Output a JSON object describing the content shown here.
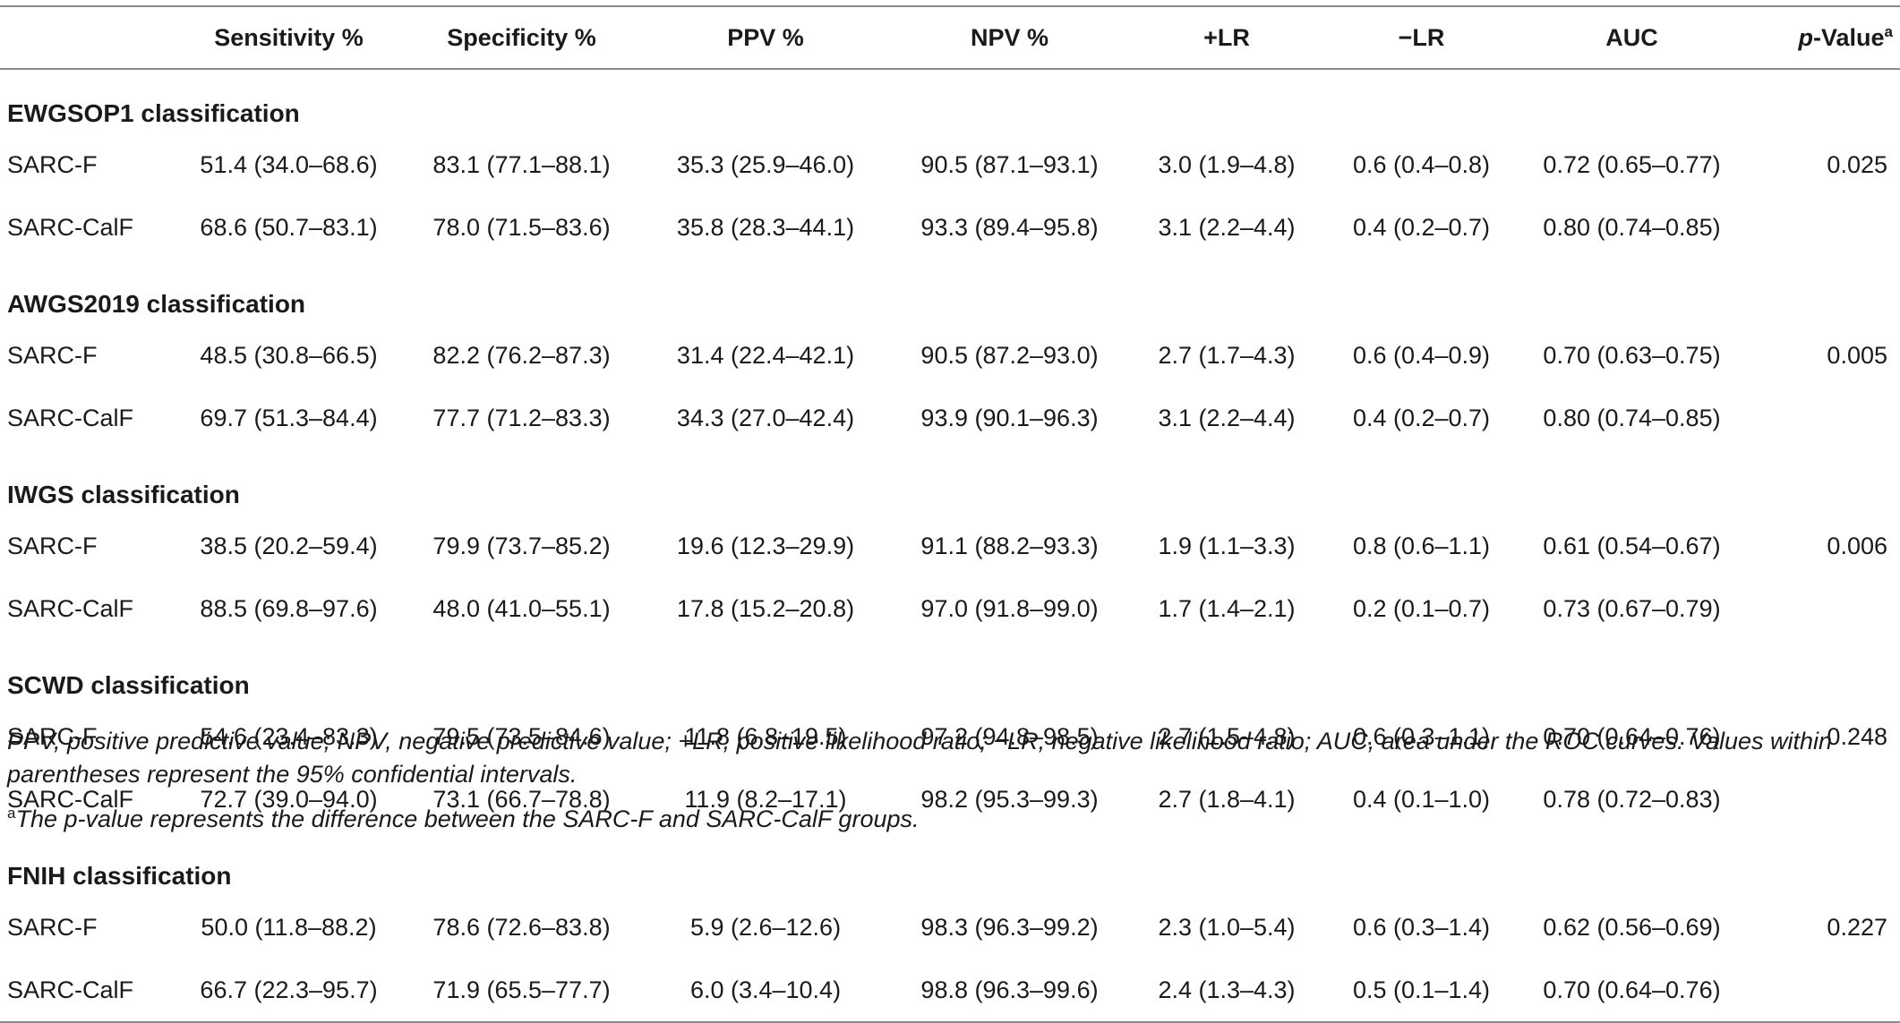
{
  "table": {
    "headers": {
      "col0": "",
      "sensitivity": "Sensitivity %",
      "specificity": "Specificity %",
      "ppv": "PPV %",
      "npv": "NPV %",
      "plr": "+LR",
      "nlr": "−LR",
      "auc": "AUC",
      "pvalue_italic": "p",
      "pvalue_rest": "-Value",
      "pvalue_sup": "a"
    },
    "sections": [
      {
        "title": "EWGSOP1 classification",
        "rows": [
          {
            "label": "SARC-F",
            "sens": "51.4 (34.0–68.6)",
            "spec": "83.1 (77.1–88.1)",
            "ppv": "35.3 (25.9–46.0)",
            "npv": "90.5 (87.1–93.1)",
            "plr": "3.0 (1.9–4.8)",
            "nlr": "0.6 (0.4–0.8)",
            "auc": "0.72 (0.65–0.77)",
            "p": "0.025"
          },
          {
            "label": "SARC-CalF",
            "sens": "68.6 (50.7–83.1)",
            "spec": "78.0 (71.5–83.6)",
            "ppv": "35.8 (28.3–44.1)",
            "npv": "93.3 (89.4–95.8)",
            "plr": "3.1 (2.2–4.4)",
            "nlr": "0.4 (0.2–0.7)",
            "auc": "0.80 (0.74–0.85)",
            "p": ""
          }
        ]
      },
      {
        "title": "AWGS2019 classification",
        "rows": [
          {
            "label": "SARC-F",
            "sens": "48.5 (30.8–66.5)",
            "spec": "82.2 (76.2–87.3)",
            "ppv": "31.4 (22.4–42.1)",
            "npv": "90.5 (87.2–93.0)",
            "plr": "2.7 (1.7–4.3)",
            "nlr": "0.6 (0.4–0.9)",
            "auc": "0.70 (0.63–0.75)",
            "p": "0.005"
          },
          {
            "label": "SARC-CalF",
            "sens": "69.7 (51.3–84.4)",
            "spec": "77.7 (71.2–83.3)",
            "ppv": "34.3 (27.0–42.4)",
            "npv": "93.9 (90.1–96.3)",
            "plr": "3.1 (2.2–4.4)",
            "nlr": "0.4 (0.2–0.7)",
            "auc": "0.80 (0.74–0.85)",
            "p": ""
          }
        ]
      },
      {
        "title": "IWGS classification",
        "rows": [
          {
            "label": "SARC-F",
            "sens": "38.5 (20.2–59.4)",
            "spec": "79.9 (73.7–85.2)",
            "ppv": "19.6 (12.3–29.9)",
            "npv": "91.1 (88.2–93.3)",
            "plr": "1.9 (1.1–3.3)",
            "nlr": "0.8 (0.6–1.1)",
            "auc": "0.61 (0.54–0.67)",
            "p": "0.006"
          },
          {
            "label": "SARC-CalF",
            "sens": "88.5 (69.8–97.6)",
            "spec": "48.0 (41.0–55.1)",
            "ppv": "17.8 (15.2–20.8)",
            "npv": "97.0 (91.8–99.0)",
            "plr": "1.7 (1.4–2.1)",
            "nlr": "0.2 (0.1–0.7)",
            "auc": "0.73 (0.67–0.79)",
            "p": ""
          }
        ]
      },
      {
        "title": "SCWD classification",
        "rows": [
          {
            "label": "SARC-F",
            "sens": "54.6 (23.4–83.3)",
            "spec": "79.5 (73.5–84.6)",
            "ppv": "11.8 (6.8–19.5)",
            "npv": "97.2 (94.8–98.5)",
            "plr": "2.7 (1.5–4.8)",
            "nlr": "0.6 (0.3–1.1)",
            "auc": "0.70 (0.64–0.76)",
            "p": "0.248"
          },
          {
            "label": "SARC-CalF",
            "sens": "72.7 (39.0–94.0)",
            "spec": "73.1 (66.7–78.8)",
            "ppv": "11.9 (8.2–17.1)",
            "npv": "98.2 (95.3–99.3)",
            "plr": "2.7 (1.8–4.1)",
            "nlr": "0.4 (0.1–1.0)",
            "auc": "0.78 (0.72–0.83)",
            "p": ""
          }
        ]
      },
      {
        "title": "FNIH classification",
        "rows": [
          {
            "label": "SARC-F",
            "sens": "50.0 (11.8–88.2)",
            "spec": "78.6 (72.6–83.8)",
            "ppv": "5.9 (2.6–12.6)",
            "npv": "98.3 (96.3–99.2)",
            "plr": "2.3 (1.0–5.4)",
            "nlr": "0.6 (0.3–1.4)",
            "auc": "0.62 (0.56–0.69)",
            "p": "0.227"
          },
          {
            "label": "SARC-CalF",
            "sens": "66.7 (22.3–95.7)",
            "spec": "71.9 (65.5–77.7)",
            "ppv": "6.0 (3.4–10.4)",
            "npv": "98.8 (96.3–99.6)",
            "plr": "2.4 (1.3–4.3)",
            "nlr": "0.5 (0.1–1.4)",
            "auc": "0.70 (0.64–0.76)",
            "p": ""
          }
        ]
      }
    ]
  },
  "footnotes": {
    "abbreviations": "PPV, positive predictive value; NPV, negative predictive value; +LR, positive likelihood ratio; −LR, negative likelihood ratio; AUC, area under the ROC curves. Values within parentheses represent the 95% confidential intervals.",
    "note_marker": "a",
    "note_text": "The p-value represents the difference between the SARC-F and SARC-CalF groups."
  }
}
